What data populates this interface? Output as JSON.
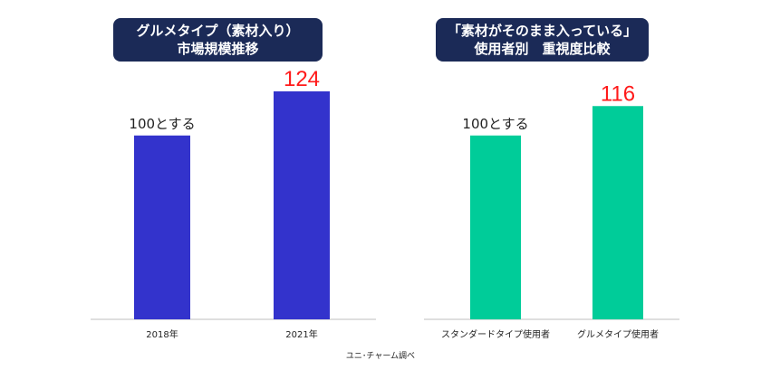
{
  "chart_data": [
    {
      "type": "bar",
      "title_lines": [
        "グルメタイプ（素材入り）",
        "市場規模推移"
      ],
      "categories": [
        "2018年",
        "2021年"
      ],
      "values": [
        100,
        124
      ],
      "data_labels": [
        "100とする",
        "124"
      ],
      "bar_color": "#3333cc",
      "highlight_label_color": "#ff1a1a",
      "ylim": [
        0,
        124
      ]
    },
    {
      "type": "bar",
      "title_lines": [
        "「素材がそのまま入っている」",
        "使用者別　重視度比較"
      ],
      "categories": [
        "スタンダードタイプ使用者",
        "グルメタイプ使用者"
      ],
      "values": [
        100,
        116
      ],
      "data_labels": [
        "100とする",
        "116"
      ],
      "bar_color": "#00cc99",
      "highlight_label_color": "#ff1a1a",
      "ylim": [
        0,
        124
      ]
    }
  ],
  "footnote": "ユニ･チャーム調べ",
  "colors": {
    "title_bg": "#1b2a57",
    "title_text": "#ffffff",
    "axis_line": "#bfbfbf"
  }
}
